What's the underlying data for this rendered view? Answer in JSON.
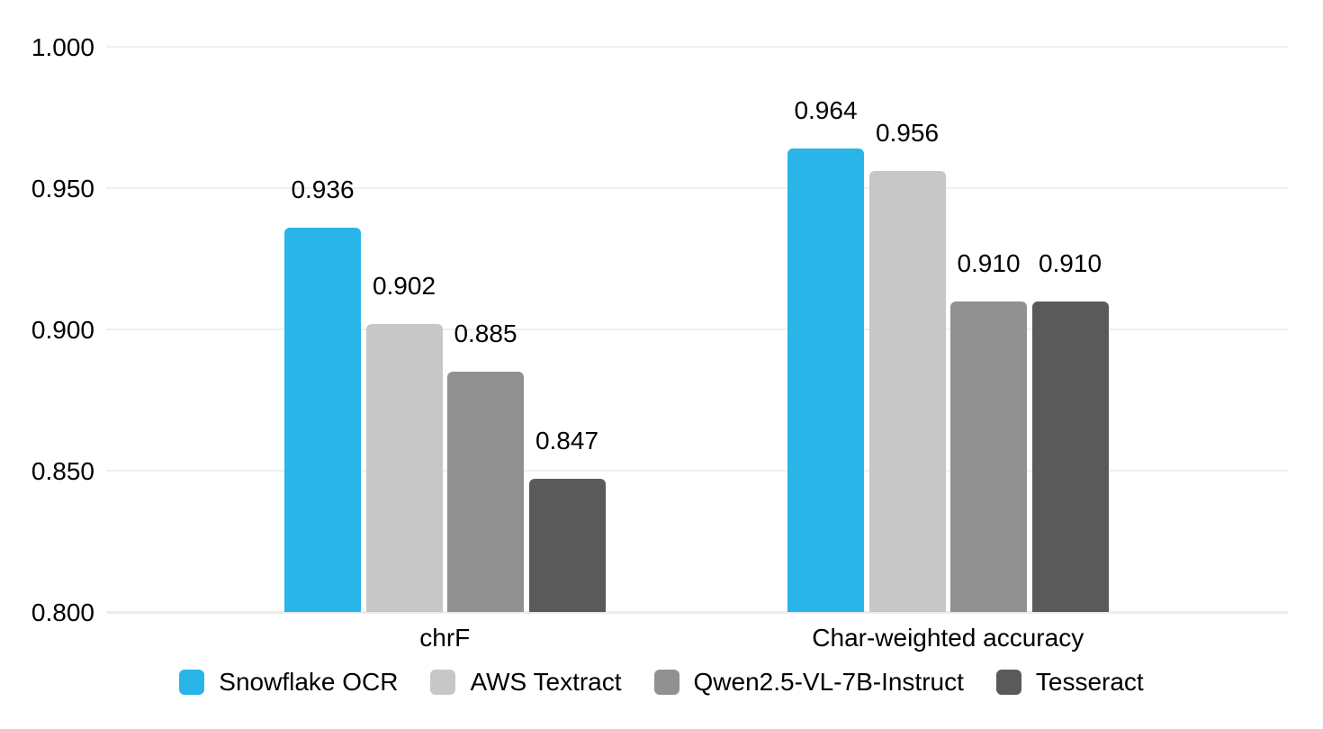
{
  "chart_data": {
    "type": "bar",
    "title": "",
    "xlabel": "",
    "ylabel": "",
    "categories": [
      "chrF",
      "Char-weighted accuracy"
    ],
    "series": [
      {
        "name": "Snowflake OCR",
        "color": "#29B5E8",
        "values": [
          0.936,
          0.964
        ],
        "labels": [
          "0.936",
          "0.964"
        ]
      },
      {
        "name": "AWS Textract",
        "color": "#C7C7C7",
        "values": [
          0.902,
          0.956
        ],
        "labels": [
          "0.902",
          "0.956"
        ]
      },
      {
        "name": "Qwen2.5-VL-7B-Instruct",
        "color": "#919191",
        "values": [
          0.885,
          0.91
        ],
        "labels": [
          "0.885",
          "0.910"
        ]
      },
      {
        "name": "Tesseract",
        "color": "#5A5A5A",
        "values": [
          0.847,
          0.91
        ],
        "labels": [
          "0.847",
          "0.910"
        ]
      }
    ],
    "y_ticks": [
      {
        "value": 1.0,
        "label": "1.000"
      },
      {
        "value": 0.95,
        "label": "0.950"
      },
      {
        "value": 0.9,
        "label": "0.900"
      },
      {
        "value": 0.85,
        "label": "0.850"
      },
      {
        "value": 0.8,
        "label": "0.800"
      }
    ],
    "ylim": [
      0.8,
      1.0
    ],
    "grid": true,
    "legend_position": "bottom",
    "background_color": "#ffffff",
    "gridline_color": "#efefef",
    "text_color": "#000000"
  }
}
